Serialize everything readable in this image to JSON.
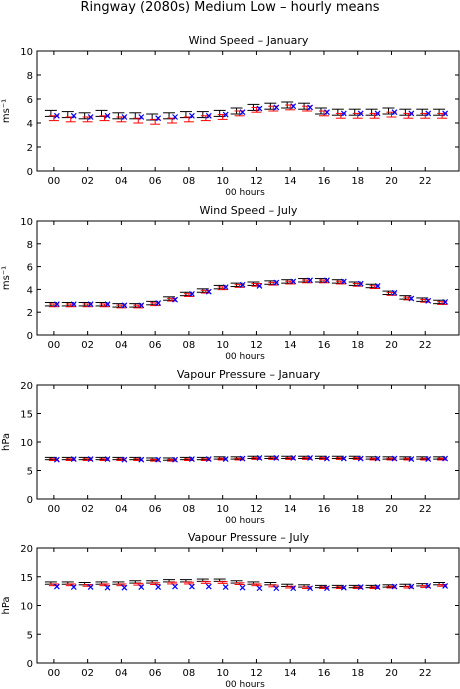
{
  "figure": {
    "title": "Ringway (2080s) Medium Low – hourly means"
  },
  "colors": {
    "black": "#000000",
    "red": "#ff0000",
    "blue": "#0000ff",
    "magenta": "#ff00ff"
  },
  "chart_data": [
    {
      "type": "line",
      "title": "Wind Speed – January",
      "xlabel": "00 hours",
      "ylabel": "ms⁻¹",
      "ylim": [
        0,
        10
      ],
      "yticks": [
        0,
        2,
        4,
        6,
        8,
        10
      ],
      "xlim": [
        -1,
        24
      ],
      "xtick_values": [
        0,
        2,
        4,
        6,
        8,
        10,
        12,
        14,
        16,
        18,
        20,
        22
      ],
      "xtick_labels": [
        "00",
        "02",
        "04",
        "06",
        "08",
        "10",
        "12",
        "14",
        "16",
        "18",
        "20",
        "22"
      ],
      "grid": false,
      "x": [
        0,
        1,
        2,
        3,
        4,
        5,
        6,
        7,
        8,
        9,
        10,
        11,
        12,
        13,
        14,
        15,
        16,
        17,
        18,
        19,
        20,
        21,
        22,
        23
      ],
      "series": [
        {
          "color": "#000000",
          "marker": "errorbar",
          "values": [
            4.8,
            4.7,
            4.6,
            4.8,
            4.6,
            4.6,
            4.5,
            4.6,
            4.7,
            4.7,
            4.8,
            5.0,
            5.3,
            5.4,
            5.5,
            5.4,
            5.0,
            4.9,
            4.9,
            4.9,
            5.0,
            4.9,
            4.9,
            4.9
          ],
          "err": [
            0.25,
            0.25,
            0.25,
            0.25,
            0.25,
            0.25,
            0.25,
            0.25,
            0.25,
            0.25,
            0.25,
            0.25,
            0.25,
            0.25,
            0.25,
            0.25,
            0.25,
            0.25,
            0.25,
            0.25,
            0.25,
            0.25,
            0.25,
            0.25
          ]
        },
        {
          "color": "#ff0000",
          "marker": "errorbar",
          "values": [
            4.4,
            4.3,
            4.3,
            4.4,
            4.3,
            4.2,
            4.1,
            4.2,
            4.3,
            4.4,
            4.5,
            4.8,
            5.1,
            5.2,
            5.3,
            5.2,
            4.8,
            4.6,
            4.6,
            4.6,
            4.7,
            4.6,
            4.6,
            4.6
          ],
          "err": [
            0.2,
            0.2,
            0.2,
            0.2,
            0.2,
            0.2,
            0.2,
            0.2,
            0.2,
            0.2,
            0.2,
            0.2,
            0.2,
            0.2,
            0.2,
            0.2,
            0.2,
            0.2,
            0.2,
            0.2,
            0.2,
            0.2,
            0.2,
            0.2
          ]
        },
        {
          "color": "#0000ff",
          "marker": "x",
          "values": [
            4.6,
            4.6,
            4.5,
            4.6,
            4.5,
            4.5,
            4.4,
            4.5,
            4.6,
            4.6,
            4.7,
            4.9,
            5.2,
            5.3,
            5.4,
            5.3,
            4.9,
            4.8,
            4.8,
            4.8,
            4.9,
            4.8,
            4.8,
            4.8
          ]
        }
      ]
    },
    {
      "type": "line",
      "title": "Wind Speed – July",
      "xlabel": "00 hours",
      "ylabel": "ms⁻¹",
      "ylim": [
        0,
        10
      ],
      "yticks": [
        0,
        2,
        4,
        6,
        8,
        10
      ],
      "xlim": [
        -1,
        24
      ],
      "xtick_values": [
        0,
        2,
        4,
        6,
        8,
        10,
        12,
        14,
        16,
        18,
        20,
        22
      ],
      "xtick_labels": [
        "00",
        "02",
        "04",
        "06",
        "08",
        "10",
        "12",
        "14",
        "16",
        "18",
        "20",
        "22"
      ],
      "grid": false,
      "x": [
        0,
        1,
        2,
        3,
        4,
        5,
        6,
        7,
        8,
        9,
        10,
        11,
        12,
        13,
        14,
        15,
        16,
        17,
        18,
        19,
        20,
        21,
        22,
        23
      ],
      "series": [
        {
          "color": "#000000",
          "marker": "errorbar",
          "values": [
            2.7,
            2.7,
            2.7,
            2.7,
            2.6,
            2.6,
            2.8,
            3.2,
            3.6,
            3.9,
            4.2,
            4.4,
            4.5,
            4.6,
            4.7,
            4.8,
            4.8,
            4.7,
            4.5,
            4.3,
            3.7,
            3.3,
            3.1,
            2.9
          ],
          "err": [
            0.15,
            0.15,
            0.15,
            0.15,
            0.15,
            0.15,
            0.15,
            0.15,
            0.15,
            0.15,
            0.15,
            0.15,
            0.15,
            0.15,
            0.15,
            0.15,
            0.15,
            0.15,
            0.15,
            0.15,
            0.15,
            0.15,
            0.15,
            0.15
          ]
        },
        {
          "color": "#ff0000",
          "marker": "errorbar",
          "values": [
            2.6,
            2.6,
            2.6,
            2.6,
            2.5,
            2.5,
            2.7,
            3.1,
            3.5,
            3.8,
            4.1,
            4.3,
            4.4,
            4.5,
            4.6,
            4.7,
            4.7,
            4.6,
            4.4,
            4.2,
            3.6,
            3.2,
            3.0,
            2.8
          ],
          "err": [
            0.12,
            0.12,
            0.12,
            0.12,
            0.12,
            0.12,
            0.12,
            0.12,
            0.12,
            0.12,
            0.12,
            0.12,
            0.12,
            0.12,
            0.12,
            0.12,
            0.12,
            0.12,
            0.12,
            0.12,
            0.12,
            0.12,
            0.12,
            0.12
          ]
        },
        {
          "color": "#0000ff",
          "marker": "x",
          "values": [
            2.7,
            2.7,
            2.7,
            2.7,
            2.6,
            2.6,
            2.8,
            3.1,
            3.6,
            3.8,
            4.2,
            4.4,
            4.3,
            4.6,
            4.7,
            4.8,
            4.8,
            4.7,
            4.5,
            4.3,
            3.7,
            3.2,
            3.0,
            2.9
          ]
        }
      ]
    },
    {
      "type": "line",
      "title": "Vapour Pressure – January",
      "xlabel": "00 hours",
      "ylabel": "hPa",
      "ylim": [
        0,
        20
      ],
      "yticks": [
        0,
        5,
        10,
        15,
        20
      ],
      "xlim": [
        -1,
        24
      ],
      "xtick_values": [
        0,
        2,
        4,
        6,
        8,
        10,
        12,
        14,
        16,
        18,
        20,
        22
      ],
      "xtick_labels": [
        "00",
        "02",
        "04",
        "06",
        "08",
        "10",
        "12",
        "14",
        "16",
        "18",
        "20",
        "22"
      ],
      "grid": false,
      "x": [
        0,
        1,
        2,
        3,
        4,
        5,
        6,
        7,
        8,
        9,
        10,
        11,
        12,
        13,
        14,
        15,
        16,
        17,
        18,
        19,
        20,
        21,
        22,
        23
      ],
      "series": [
        {
          "color": "#000000",
          "marker": "errorbar",
          "values": [
            7.1,
            7.1,
            7.1,
            7.1,
            7.1,
            7.1,
            7.0,
            7.0,
            7.1,
            7.1,
            7.2,
            7.2,
            7.3,
            7.3,
            7.3,
            7.3,
            7.3,
            7.3,
            7.3,
            7.2,
            7.2,
            7.2,
            7.2,
            7.2
          ],
          "err": [
            0.2,
            0.2,
            0.2,
            0.2,
            0.2,
            0.2,
            0.2,
            0.2,
            0.2,
            0.2,
            0.2,
            0.2,
            0.2,
            0.2,
            0.2,
            0.2,
            0.2,
            0.2,
            0.2,
            0.2,
            0.2,
            0.2,
            0.2,
            0.2
          ]
        },
        {
          "color": "#ff0000",
          "marker": "errorbar",
          "values": [
            6.9,
            6.9,
            6.9,
            6.9,
            6.9,
            6.9,
            6.8,
            6.8,
            6.9,
            6.9,
            7.0,
            7.0,
            7.1,
            7.1,
            7.1,
            7.1,
            7.1,
            7.1,
            7.1,
            7.0,
            7.0,
            7.0,
            7.0,
            7.0
          ],
          "err": [
            0.15,
            0.15,
            0.15,
            0.15,
            0.15,
            0.15,
            0.15,
            0.15,
            0.15,
            0.15,
            0.15,
            0.15,
            0.15,
            0.15,
            0.15,
            0.15,
            0.15,
            0.15,
            0.15,
            0.15,
            0.15,
            0.15,
            0.15,
            0.15
          ]
        },
        {
          "color": "#0000ff",
          "marker": "x",
          "values": [
            6.9,
            7.0,
            7.0,
            7.0,
            6.9,
            6.9,
            6.9,
            6.9,
            7.0,
            7.0,
            7.0,
            7.1,
            7.2,
            7.2,
            7.2,
            7.2,
            7.1,
            7.1,
            7.1,
            7.1,
            7.1,
            7.0,
            7.0,
            7.1
          ]
        }
      ]
    },
    {
      "type": "line",
      "title": "Vapour Pressure – July",
      "xlabel": "00 hours",
      "ylabel": "hPa",
      "ylim": [
        0,
        20
      ],
      "yticks": [
        0,
        5,
        10,
        15,
        20
      ],
      "xlim": [
        -1,
        24
      ],
      "xtick_values": [
        0,
        2,
        4,
        6,
        8,
        10,
        12,
        14,
        16,
        18,
        20,
        22
      ],
      "xtick_labels": [
        "00",
        "02",
        "04",
        "06",
        "08",
        "10",
        "12",
        "14",
        "16",
        "18",
        "20",
        "22"
      ],
      "grid": false,
      "x": [
        0,
        1,
        2,
        3,
        4,
        5,
        6,
        7,
        8,
        9,
        10,
        11,
        12,
        13,
        14,
        15,
        16,
        17,
        18,
        19,
        20,
        21,
        22,
        23
      ],
      "series": [
        {
          "color": "#000000",
          "marker": "errorbar",
          "values": [
            13.9,
            13.9,
            13.8,
            13.9,
            13.9,
            14.1,
            14.1,
            14.3,
            14.3,
            14.4,
            14.4,
            14.1,
            13.9,
            13.8,
            13.5,
            13.4,
            13.3,
            13.3,
            13.3,
            13.3,
            13.4,
            13.5,
            13.6,
            13.8
          ],
          "err": [
            0.2,
            0.2,
            0.2,
            0.2,
            0.2,
            0.2,
            0.2,
            0.2,
            0.2,
            0.2,
            0.2,
            0.2,
            0.2,
            0.2,
            0.2,
            0.2,
            0.2,
            0.2,
            0.2,
            0.2,
            0.2,
            0.2,
            0.2,
            0.2
          ]
        },
        {
          "color": "#ff0000",
          "marker": "errorbar",
          "values": [
            13.6,
            13.6,
            13.5,
            13.6,
            13.6,
            13.7,
            13.8,
            13.9,
            13.9,
            14.0,
            14.0,
            13.8,
            13.6,
            13.4,
            13.2,
            13.1,
            13.1,
            13.1,
            13.1,
            13.1,
            13.2,
            13.2,
            13.3,
            13.5
          ],
          "err": [
            0.15,
            0.15,
            0.15,
            0.15,
            0.15,
            0.15,
            0.15,
            0.15,
            0.15,
            0.15,
            0.15,
            0.15,
            0.15,
            0.15,
            0.15,
            0.15,
            0.15,
            0.15,
            0.15,
            0.15,
            0.15,
            0.15,
            0.15,
            0.15
          ]
        },
        {
          "color": "#0000ff",
          "marker": "x",
          "values": [
            13.3,
            13.2,
            13.2,
            13.1,
            13.1,
            13.2,
            13.2,
            13.3,
            13.3,
            13.3,
            13.2,
            13.1,
            13.0,
            13.0,
            13.0,
            13.0,
            13.0,
            13.1,
            13.2,
            13.2,
            13.3,
            13.3,
            13.4,
            13.4
          ]
        }
      ]
    }
  ]
}
